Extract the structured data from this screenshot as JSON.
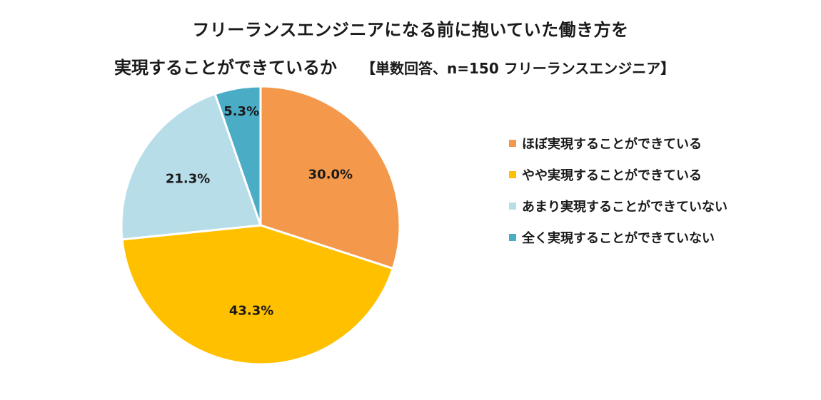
{
  "title": {
    "line1": "フリーランスエンジニアになる前に抱いていた働き方を",
    "line2": "実現することができているか",
    "subtitle": "【単数回答、n=150 フリーランスエンジニア】"
  },
  "chart_data": {
    "type": "pie",
    "title": "フリーランスエンジニアになる前に抱いていた働き方を実現することができているか",
    "subtitle": "【単数回答、n=150 フリーランスエンジニア】",
    "categories": [
      "ほぼ実現することができている",
      "やや実現することができている",
      "あまり実現することができていない",
      "全く実現することができていない"
    ],
    "values": [
      30.0,
      43.3,
      21.3,
      5.3
    ],
    "labels": [
      "30.0%",
      "43.3%",
      "21.3%",
      "5.3%"
    ],
    "colors": [
      "#F4994B",
      "#FFC000",
      "#B7DDE8",
      "#4BACC6"
    ],
    "start_angle": "12 o'clock",
    "direction": "clockwise",
    "legend_position": "right"
  }
}
